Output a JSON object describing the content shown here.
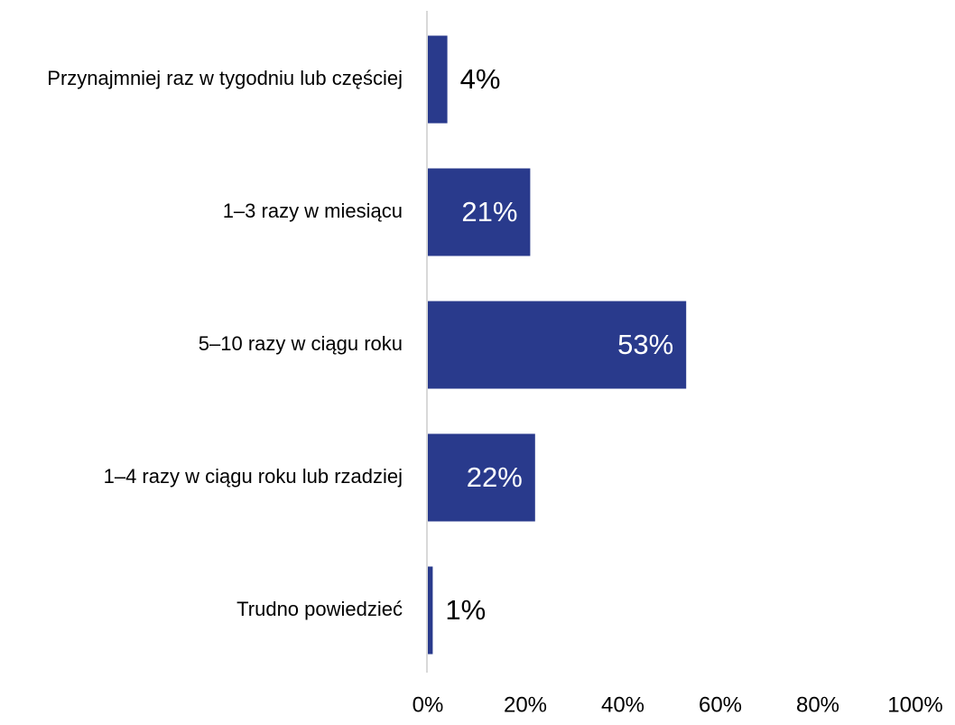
{
  "chart_data": {
    "type": "barh",
    "categories": [
      "Przynajmniej raz w tygodniu lub częściej",
      "1–3 razy w miesiącu",
      "5–10 razy w ciągu roku",
      "1–4 razy w ciągu roku lub rzadziej",
      "Trudno powiedzieć"
    ],
    "values": [
      4,
      21,
      53,
      22,
      1
    ],
    "value_labels": [
      "4%",
      "21%",
      "53%",
      "22%",
      "1%"
    ],
    "color": "#293a8c",
    "xlim": [
      0,
      100
    ],
    "xticks": [
      {
        "value": 0,
        "label": "0%"
      },
      {
        "value": 20,
        "label": "20%"
      },
      {
        "value": 40,
        "label": "40%"
      },
      {
        "value": 60,
        "label": "60%"
      },
      {
        "value": 80,
        "label": "80%"
      },
      {
        "value": 100,
        "label": "100%"
      }
    ],
    "grid": false
  }
}
